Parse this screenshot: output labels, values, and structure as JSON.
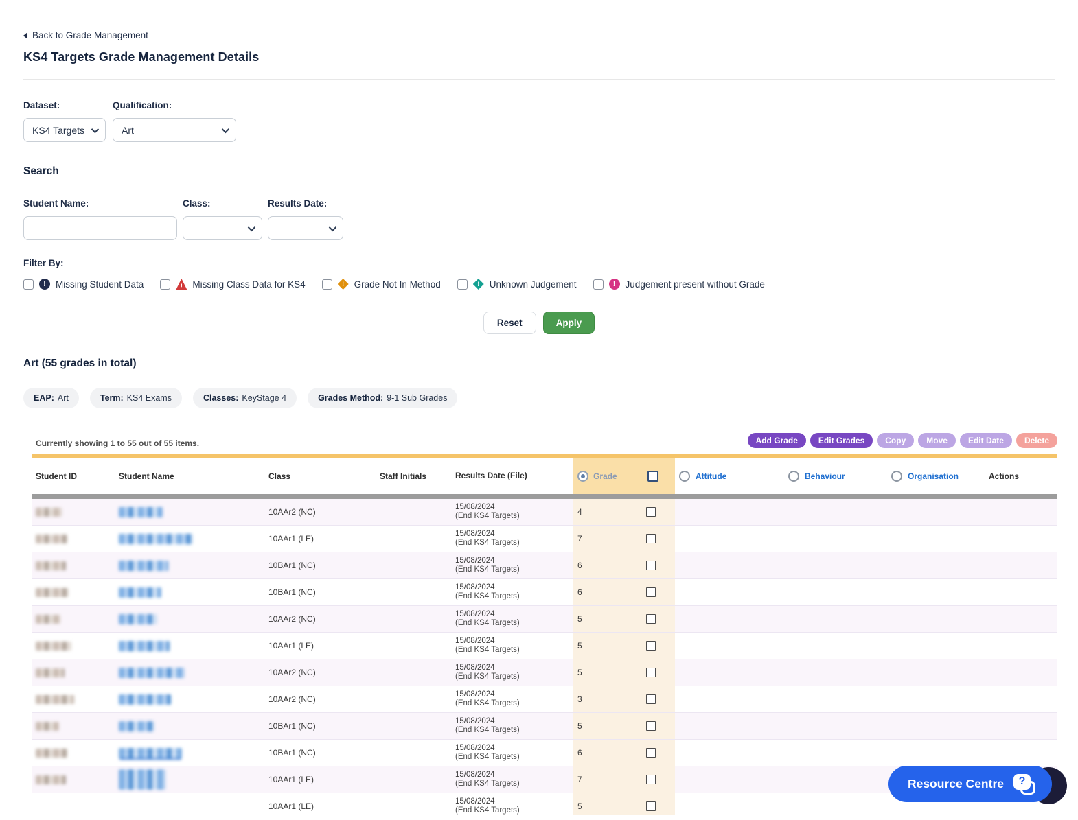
{
  "page": {
    "back_link": "Back to Grade Management",
    "title": "KS4 Targets Grade Management Details"
  },
  "dataset": {
    "label": "Dataset:",
    "value": "KS4 Targets"
  },
  "qualification": {
    "label": "Qualification:",
    "value": "Art"
  },
  "search": {
    "heading": "Search",
    "student_name_label": "Student Name:",
    "student_name_value": "",
    "class_label": "Class:",
    "class_value": "",
    "results_date_label": "Results Date:",
    "results_date_value": ""
  },
  "filter_by": {
    "label": "Filter By:",
    "options": [
      {
        "label": "Missing Student Data",
        "icon": "alert-circle-dark",
        "color": "#222c4c"
      },
      {
        "label": "Missing Class Data for KS4",
        "icon": "alert-triangle-red",
        "color": "#d23b3b"
      },
      {
        "label": "Grade Not In Method",
        "icon": "alert-diamond-orange",
        "color": "#e0900c"
      },
      {
        "label": "Unknown Judgement",
        "icon": "alert-diamond-teal",
        "color": "#14a192"
      },
      {
        "label": "Judgement present without Grade",
        "icon": "alert-circle-pink",
        "color": "#d63384"
      }
    ]
  },
  "form_buttons": {
    "reset": "Reset",
    "apply": "Apply"
  },
  "section": {
    "title": "Art (55 grades in total)"
  },
  "pills": [
    {
      "label": "EAP:",
      "value": "Art"
    },
    {
      "label": "Term:",
      "value": "KS4 Exams"
    },
    {
      "label": "Classes:",
      "value": "KeyStage 4"
    },
    {
      "label": "Grades Method:",
      "value": "9-1 Sub Grades"
    }
  ],
  "table": {
    "showing": "Currently showing 1 to 55 out of 55 items.",
    "actions": [
      {
        "label": "Add Grade",
        "style": "solid"
      },
      {
        "label": "Edit Grades",
        "style": "solid"
      },
      {
        "label": "Copy",
        "style": "light"
      },
      {
        "label": "Move",
        "style": "light"
      },
      {
        "label": "Edit Date",
        "style": "light"
      },
      {
        "label": "Delete",
        "style": "danger"
      }
    ],
    "columns": {
      "student_id": "Student ID",
      "student_name": "Student Name",
      "class": "Class",
      "staff_initials": "Staff Initials",
      "results_date_line1": "Results Date",
      "results_date_line2": "(File)",
      "grade": "Grade",
      "attitude": "Attitude",
      "behaviour": "Behaviour",
      "organisation": "Organisation",
      "actions": "Actions"
    },
    "rows": [
      {
        "class": "10AAr2 (NC)",
        "date": "15/08/2024",
        "file": "(End KS4 Targets)",
        "grade": "4"
      },
      {
        "class": "10AAr1 (LE)",
        "date": "15/08/2024",
        "file": "(End KS4 Targets)",
        "grade": "7"
      },
      {
        "class": "10BAr1 (NC)",
        "date": "15/08/2024",
        "file": "(End KS4 Targets)",
        "grade": "6"
      },
      {
        "class": "10BAr1 (NC)",
        "date": "15/08/2024",
        "file": "(End KS4 Targets)",
        "grade": "6"
      },
      {
        "class": "10AAr2 (NC)",
        "date": "15/08/2024",
        "file": "(End KS4 Targets)",
        "grade": "5"
      },
      {
        "class": "10AAr1 (LE)",
        "date": "15/08/2024",
        "file": "(End KS4 Targets)",
        "grade": "5"
      },
      {
        "class": "10AAr2 (NC)",
        "date": "15/08/2024",
        "file": "(End KS4 Targets)",
        "grade": "5"
      },
      {
        "class": "10AAr2 (NC)",
        "date": "15/08/2024",
        "file": "(End KS4 Targets)",
        "grade": "3"
      },
      {
        "class": "10BAr1 (NC)",
        "date": "15/08/2024",
        "file": "(End KS4 Targets)",
        "grade": "5"
      },
      {
        "class": "10BAr1 (NC)",
        "date": "15/08/2024",
        "file": "(End KS4 Targets)",
        "grade": "6"
      },
      {
        "class": "10AAr1 (LE)",
        "date": "15/08/2024",
        "file": "(End KS4 Targets)",
        "grade": "7"
      },
      {
        "class": "10AAr1 (LE)",
        "date": "15/08/2024",
        "file": "(End KS4 Targets)",
        "grade": "5"
      }
    ]
  },
  "resource_centre": {
    "label": "Resource Centre"
  },
  "colors": {
    "accent_purple": "#7847c2",
    "accent_purple_light": "#bca6e4",
    "danger_light": "#f4a29c",
    "apply_green": "#4a9b4f",
    "table_bar_orange": "#f5c469",
    "grade_header_bg": "#fadfa8",
    "grade_cell_bg": "#fbf1e2",
    "link_blue": "#1f6fd0",
    "resource_blue": "#2563eb"
  }
}
